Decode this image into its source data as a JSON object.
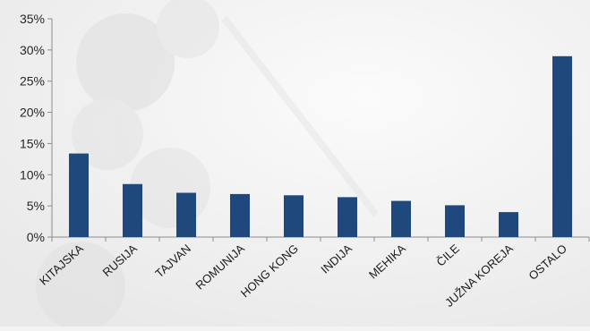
{
  "chart_data": {
    "type": "bar",
    "categories": [
      "KITAJSKA",
      "RUSIJA",
      "TAJVAN",
      "ROMUNIJA",
      "HONG KONG",
      "INDIJA",
      "MEHIKA",
      "ČILE",
      "JUŽNA KOREJA",
      "OSTALO"
    ],
    "values": [
      13.4,
      8.5,
      7.1,
      6.9,
      6.7,
      6.4,
      5.8,
      5.1,
      4.0,
      29.0
    ],
    "ylim": [
      0,
      35
    ],
    "yticks": [
      0,
      5,
      10,
      15,
      20,
      25,
      30,
      35
    ],
    "ytick_labels": [
      "0%",
      "5%",
      "10%",
      "15%",
      "20%",
      "25%",
      "30%",
      "35%"
    ],
    "title": "",
    "xlabel": "",
    "ylabel": "",
    "grid": false,
    "legend": "none",
    "bar_color": "#1f497d"
  }
}
